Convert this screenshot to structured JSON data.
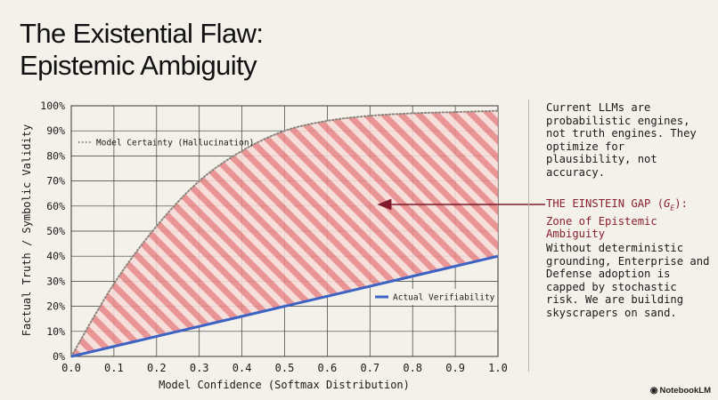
{
  "slide": {
    "title_line1": "The Existential Flaw:",
    "title_line2": "Epistemic Ambiguity",
    "brand": "NotebookLM"
  },
  "side_text": {
    "p1": "Current LLMs are probabilistic engines, not truth engines. They optimize for plausibility, not accuracy.",
    "gap_line1_prefix": "THE EINSTEIN GAP (",
    "gap_symbol": "G",
    "gap_subscript": "E",
    "gap_line1_suffix": "):",
    "gap_line2": "Zone of Epistemic Ambiguity",
    "p2": "Without deterministic grounding, Enterprise and Defense adoption is capped by stochastic risk. We are building skyscrapers on sand."
  },
  "colors": {
    "certainty": "#8a857c",
    "verifiability": "#3c63c4",
    "gap_fill": "#e88b8b",
    "gap_text": "#8a1f2e",
    "arrow": "#7e1a2a"
  },
  "chart_data": {
    "type": "area",
    "xlabel": "Model Confidence (Softmax Distribution)",
    "ylabel": "Factual Truth / Symbolic Validity",
    "xlim": [
      0,
      1
    ],
    "ylim": [
      0,
      100
    ],
    "x_ticks": [
      "0.0",
      "0.1",
      "0.2",
      "0.3",
      "0.4",
      "0.5",
      "0.6",
      "0.7",
      "0.8",
      "0.9",
      "1.0"
    ],
    "y_ticks": [
      "0%",
      "10%",
      "20%",
      "30%",
      "40%",
      "50%",
      "60%",
      "70%",
      "80%",
      "90%",
      "100%"
    ],
    "grid": true,
    "x": [
      0.0,
      0.1,
      0.2,
      0.3,
      0.4,
      0.5,
      0.6,
      0.7,
      0.8,
      0.9,
      1.0
    ],
    "series": [
      {
        "name": "Model Certainty (Hallucination)",
        "style": "dotted",
        "values": [
          0,
          29,
          52,
          70,
          82,
          90,
          94,
          96,
          97,
          97.5,
          98
        ]
      },
      {
        "name": "Actual Verifiability",
        "style": "solid",
        "values": [
          0,
          4,
          8,
          12,
          16,
          20,
          24,
          28,
          32,
          36,
          40
        ]
      }
    ],
    "shaded_region": "between series",
    "legend_certainty_position": "top-left",
    "legend_verifiability_position": "bottom-right"
  }
}
